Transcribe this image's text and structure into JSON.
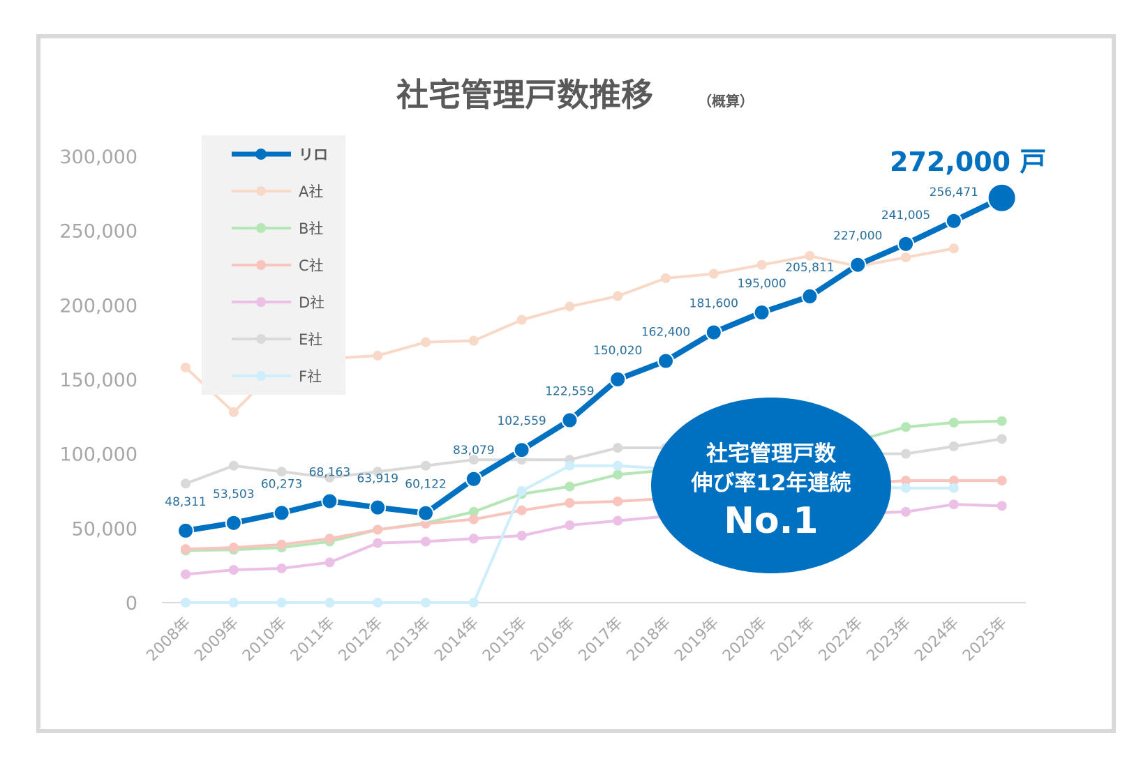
{
  "title": "社宅管理戸数推移",
  "subtitle": "（概算）",
  "callout": "272,000 戸",
  "badge": {
    "line1": "社宅管理戸数",
    "line2": "伸び率12年連続",
    "line3": "No.1"
  },
  "colors": {
    "リロ": "#0070c0",
    "A社": "#f8d9c8",
    "B社": "#b5e6b5",
    "C社": "#f8c4bd",
    "D社": "#ecc0e6",
    "E社": "#d9d9d9",
    "F社": "#cdeefa",
    "legend_bg": "#f2f2f2",
    "badge": "#0070c0"
  },
  "chart_data": {
    "type": "line",
    "title": "社宅管理戸数推移",
    "subtitle": "（概算）",
    "ylim": [
      0,
      300000
    ],
    "yticks": [
      "0",
      "50,000",
      "100,000",
      "150,000",
      "200,000",
      "250,000",
      "300,000"
    ],
    "grid": false,
    "legend_position": "upper-left",
    "categories": [
      "2008年",
      "2009年",
      "2010年",
      "2011年",
      "2012年",
      "2013年",
      "2014年",
      "2015年",
      "2016年",
      "2017年",
      "2018年",
      "2019年",
      "2020年",
      "2021年",
      "2022年",
      "2023年",
      "2024年",
      "2025年"
    ],
    "series": [
      {
        "name": "リロ",
        "values": [
          48311,
          53503,
          60273,
          68163,
          63919,
          60122,
          83079,
          102559,
          122559,
          150020,
          162400,
          181600,
          195000,
          205811,
          227000,
          241005,
          256471,
          272000
        ],
        "labels": [
          "48,311",
          "53,503",
          "60,273",
          "68,163",
          "63,919",
          "60,122",
          "83,079",
          "102,559",
          "122,559",
          "150,020",
          "162,400",
          "181,600",
          "195,000",
          "205,811",
          "227,000",
          "241,005",
          "256,471",
          null
        ]
      },
      {
        "name": "A社",
        "values": [
          158000,
          128000,
          160000,
          164000,
          166000,
          175000,
          176000,
          190000,
          199000,
          206000,
          218000,
          221000,
          227000,
          233000,
          226000,
          232000,
          238000,
          null
        ]
      },
      {
        "name": "B社",
        "values": [
          35000,
          35500,
          37000,
          41000,
          49000,
          53500,
          61000,
          73000,
          78000,
          86000,
          89000,
          93000,
          97000,
          101000,
          109000,
          118000,
          121000,
          122000
        ]
      },
      {
        "name": "C社",
        "values": [
          36000,
          37000,
          39000,
          43000,
          49000,
          53000,
          56000,
          62000,
          67000,
          68000,
          70000,
          73000,
          76000,
          78000,
          80000,
          82000,
          82000,
          82000
        ]
      },
      {
        "name": "D社",
        "values": [
          19000,
          22000,
          23000,
          27000,
          40000,
          41000,
          43000,
          45000,
          52000,
          55000,
          58000,
          59000,
          59000,
          60000,
          60000,
          61000,
          66000,
          65000
        ]
      },
      {
        "name": "E社",
        "values": [
          80000,
          92000,
          88000,
          84000,
          88000,
          92000,
          96000,
          96000,
          96000,
          104000,
          104000,
          102000,
          100000,
          100000,
          100000,
          100000,
          105000,
          110000
        ]
      },
      {
        "name": "F社",
        "values": [
          0,
          0,
          0,
          0,
          0,
          0,
          0,
          75000,
          92000,
          92000,
          90000,
          88000,
          85000,
          80000,
          78000,
          77000,
          77000,
          null
        ]
      }
    ]
  }
}
